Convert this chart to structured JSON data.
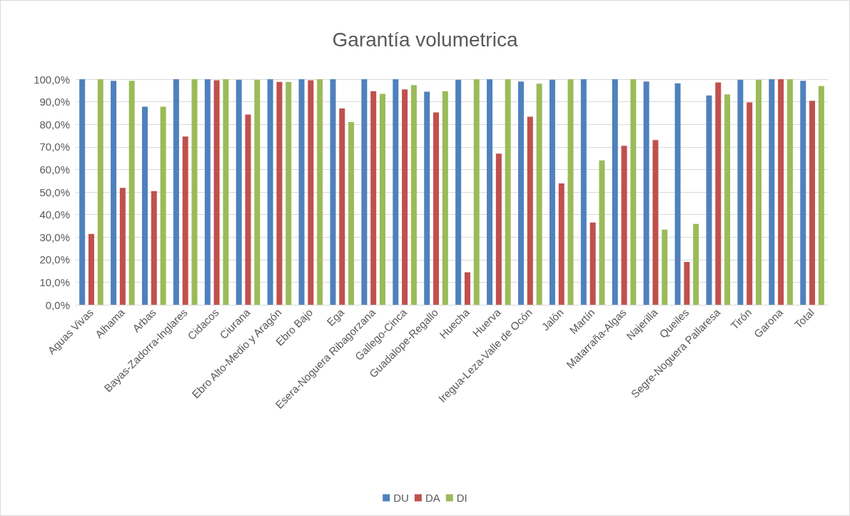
{
  "chart_data": {
    "type": "bar",
    "title": "Garantía volumetrica",
    "categories": [
      "Aguas Vivas",
      "Alhama",
      "Arbas",
      "Bayas-Zadorra-Inglares",
      "Cidacos",
      "Ciurana",
      "Ebro Alto-Medio y Aragón",
      "Ebro Bajo",
      "Ega",
      "Esera-Noguera Ribagorzana",
      "Gallego-Cinca",
      "Guadalope-Regallo",
      "Huecha",
      "Huerva",
      "Iregua-Leza-Valle de Ocón",
      "Jalón",
      "Martín",
      "Matarraña-Algas",
      "Najerilla",
      "Queiles",
      "Segre-Noguera Pallaresa",
      "Tirón",
      "Garona",
      "Total"
    ],
    "series": [
      {
        "name": "DU",
        "color": "#4f81bd",
        "values": [
          100,
          99.3,
          87.8,
          100,
          100,
          99.8,
          100,
          100,
          100,
          100,
          100,
          94.5,
          99.8,
          100,
          99,
          99.8,
          100,
          100,
          99,
          98.2,
          92.8,
          99.8,
          100,
          99.3
        ]
      },
      {
        "name": "DA",
        "color": "#c0504d",
        "values": [
          31.4,
          51.8,
          50.4,
          74.6,
          99.5,
          84.3,
          98.8,
          99.5,
          87,
          94.7,
          95.5,
          85.3,
          14.4,
          67,
          83.4,
          53.8,
          36.5,
          70.5,
          73,
          19,
          98.6,
          89.7,
          100,
          90.4
        ]
      },
      {
        "name": "DI",
        "color": "#9bbb59",
        "values": [
          100,
          99.3,
          87.8,
          100,
          100,
          99.8,
          98.8,
          100,
          81,
          93.5,
          97.4,
          94.7,
          100,
          100,
          98,
          100,
          64,
          100,
          33.3,
          35.8,
          93.3,
          99.8,
          100,
          97
        ]
      }
    ],
    "ylim": [
      0,
      100
    ],
    "yticks": [
      {
        "value": 0,
        "label": "0,0%"
      },
      {
        "value": 10,
        "label": "10,0%"
      },
      {
        "value": 20,
        "label": "20,0%"
      },
      {
        "value": 30,
        "label": "30,0%"
      },
      {
        "value": 40,
        "label": "40,0%"
      },
      {
        "value": 50,
        "label": "50,0%"
      },
      {
        "value": 60,
        "label": "60,0%"
      },
      {
        "value": 70,
        "label": "70,0%"
      },
      {
        "value": 80,
        "label": "80,0%"
      },
      {
        "value": 90,
        "label": "90,0%"
      },
      {
        "value": 100,
        "label": "100,0%"
      }
    ],
    "grid": "y",
    "legend": "bottom"
  }
}
